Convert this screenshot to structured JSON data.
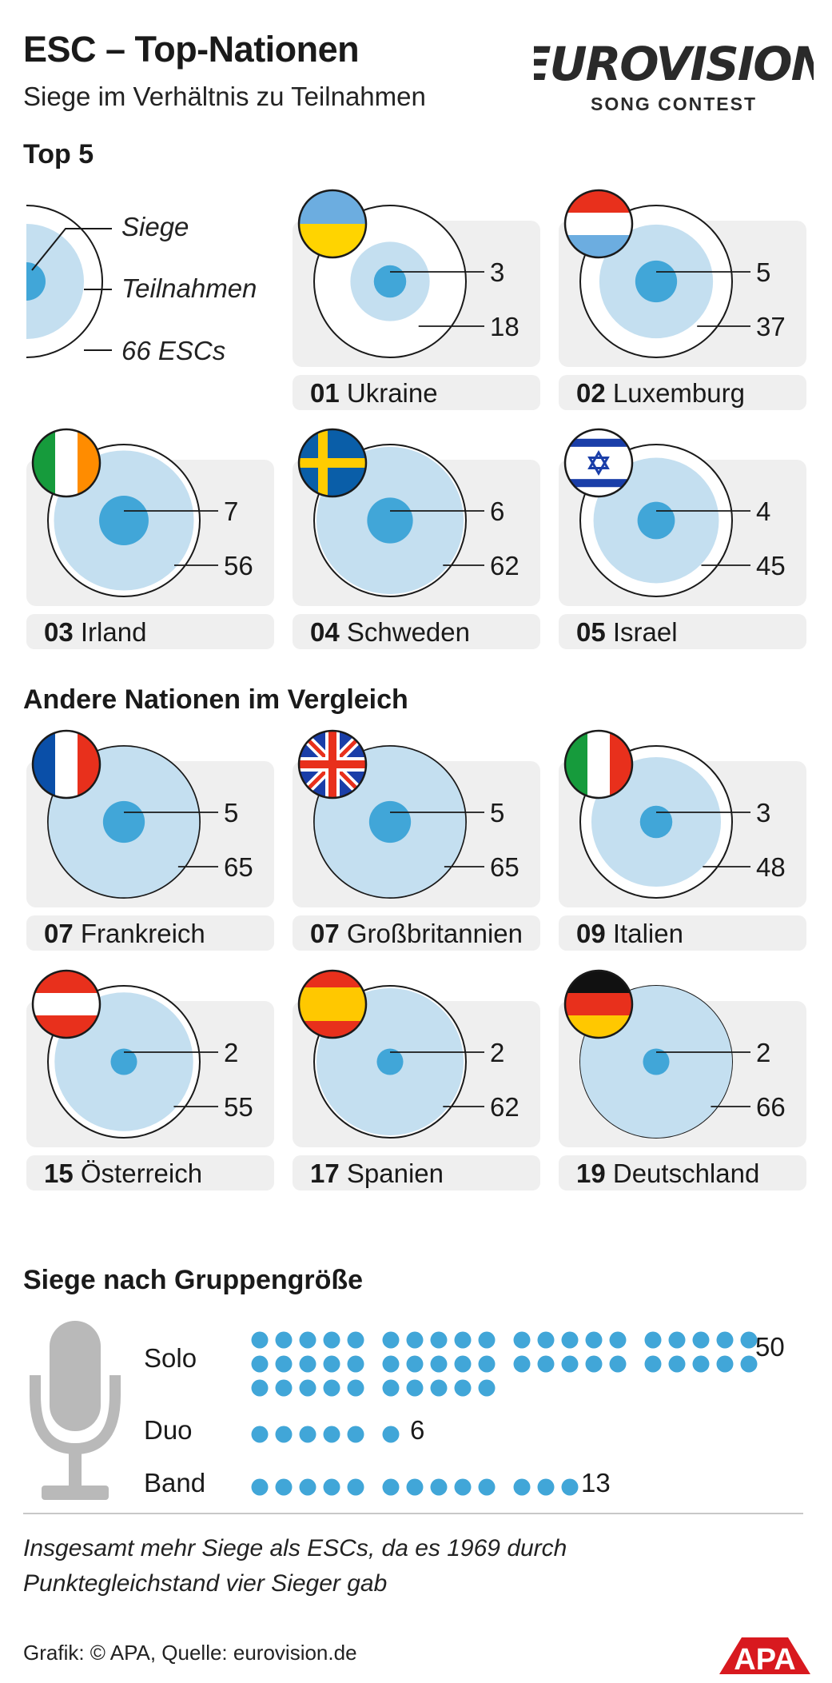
{
  "header": {
    "title": "ESC – Top-Nationen",
    "subtitle": "Siege im Verhältnis zu Teilnahmen"
  },
  "logo": {
    "name": "eurovision-logo",
    "line1": "EUROVISION",
    "line2": "SONG CONTEST"
  },
  "sections": {
    "top5": "Top 5",
    "others": "Andere Nationen im Vergleich",
    "groups": "Siege nach Gruppengröße"
  },
  "legend": {
    "wins": "Siege",
    "participations": "Teilnahmen",
    "total": "66 ESCs"
  },
  "colors": {
    "dot": "#41a6d8",
    "disc": "#c4dff0",
    "panel": "#efefef",
    "ring": "#1a1a1a"
  },
  "chart_data": [
    {
      "type": "bubble",
      "total_contests": 66,
      "nations": [
        {
          "rank": "01",
          "name": "Ukraine",
          "wins": 3,
          "participations": 18,
          "flag": "ukraine"
        },
        {
          "rank": "02",
          "name": "Luxemburg",
          "wins": 5,
          "participations": 37,
          "flag": "luxembourg"
        },
        {
          "rank": "03",
          "name": "Irland",
          "wins": 7,
          "participations": 56,
          "flag": "ireland"
        },
        {
          "rank": "04",
          "name": "Schweden",
          "wins": 6,
          "participations": 62,
          "flag": "sweden"
        },
        {
          "rank": "05",
          "name": "Israel",
          "wins": 4,
          "participations": 45,
          "flag": "israel"
        },
        {
          "rank": "07",
          "name": "Frankreich",
          "wins": 5,
          "participations": 65,
          "flag": "france"
        },
        {
          "rank": "07",
          "name": "Großbritannien",
          "wins": 5,
          "participations": 65,
          "flag": "uk"
        },
        {
          "rank": "09",
          "name": "Italien",
          "wins": 3,
          "participations": 48,
          "flag": "italy"
        },
        {
          "rank": "15",
          "name": "Österreich",
          "wins": 2,
          "participations": 55,
          "flag": "austria"
        },
        {
          "rank": "17",
          "name": "Spanien",
          "wins": 2,
          "participations": 62,
          "flag": "spain"
        },
        {
          "rank": "19",
          "name": "Deutschland",
          "wins": 2,
          "participations": 66,
          "flag": "germany"
        }
      ]
    },
    {
      "type": "pictogram",
      "icon": "microphone-icon",
      "categories": [
        "Solo",
        "Duo",
        "Band"
      ],
      "values": [
        50,
        6,
        13
      ]
    }
  ],
  "footer": {
    "note_line1": "Insgesamt mehr Siege als ESCs, da es 1969 durch",
    "note_line2": "Punktegleichstand vier Sieger gab",
    "source": "Grafik: © APA, Quelle: eurovision.de",
    "apa": "APA"
  }
}
